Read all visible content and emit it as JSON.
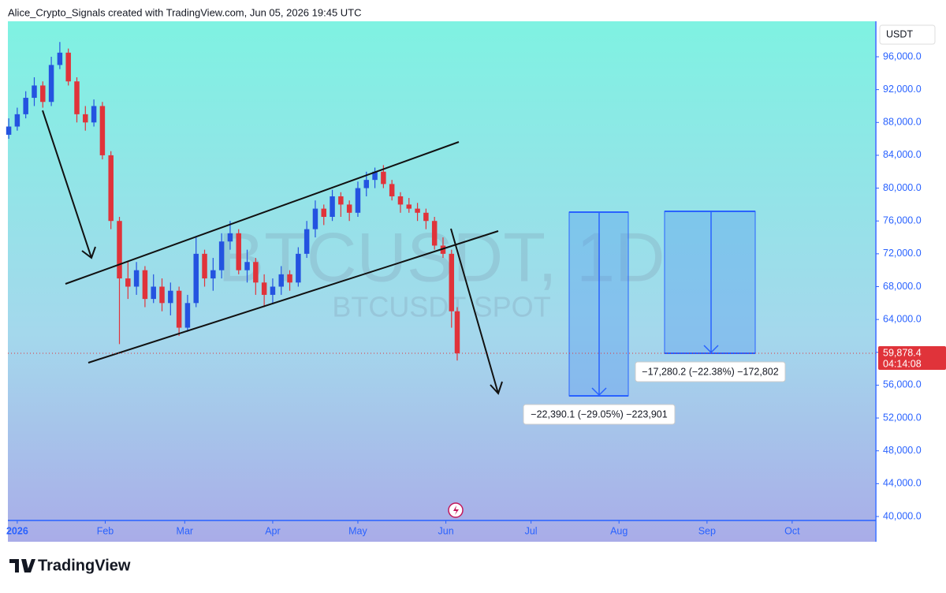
{
  "header": "Alice_Crypto_Signals created with TradingView.com, Jun 05, 2026 19:45 UTC",
  "chart_data": {
    "type": "candlestick",
    "currency": "USDT",
    "watermark": "BTCUSDT, 1D",
    "watermark_sub": "BTCUSDT SPOT",
    "up_color": "#2453e0",
    "down_color": "#e0333a",
    "x": [
      -3,
      0,
      3,
      6,
      9,
      12,
      15,
      18,
      21,
      24,
      27,
      30,
      33,
      36,
      39,
      42,
      45,
      48,
      51,
      54,
      57,
      60,
      63,
      66,
      69,
      72,
      75,
      78,
      81,
      84,
      87,
      90,
      93,
      96,
      99,
      102,
      105,
      108,
      111,
      114,
      117,
      120,
      123,
      126,
      129,
      132,
      135,
      138,
      141,
      144,
      147,
      150,
      153,
      155
    ],
    "open": [
      86500,
      87500,
      89000,
      91000,
      92500,
      90500,
      95000,
      96500,
      93000,
      89000,
      88000,
      90000,
      84000,
      76000,
      69000,
      68000,
      70000,
      66500,
      68000,
      66000,
      67500,
      63000,
      66000,
      72000,
      69000,
      70000,
      73500,
      74500,
      70000,
      71000,
      68500,
      67000,
      68000,
      69500,
      68500,
      72000,
      75000,
      77500,
      76500,
      79000,
      78000,
      77000,
      80000,
      81000,
      82000,
      80500,
      79000,
      78000,
      77500,
      77000,
      76000,
      73000,
      72000,
      65000
    ],
    "high": [
      88500,
      89800,
      91800,
      93500,
      93000,
      96000,
      97800,
      97000,
      93500,
      90000,
      90800,
      90500,
      84500,
      76500,
      71000,
      71000,
      70500,
      69500,
      69000,
      68500,
      68000,
      67000,
      74000,
      72500,
      71500,
      74500,
      76000,
      75000,
      72500,
      71500,
      69500,
      69000,
      70500,
      70000,
      72800,
      76000,
      78500,
      78000,
      79800,
      79500,
      78500,
      80800,
      82000,
      82500,
      82800,
      81000,
      79500,
      78800,
      78200,
      77500,
      76500,
      74000,
      72500,
      65500
    ],
    "low": [
      86000,
      87000,
      88500,
      90000,
      89800,
      90000,
      94500,
      92500,
      88000,
      87000,
      87500,
      83500,
      75000,
      61000,
      66500,
      67000,
      65500,
      66000,
      65000,
      64500,
      62000,
      62500,
      65500,
      68000,
      67500,
      69000,
      72500,
      69500,
      68500,
      67000,
      65500,
      66000,
      67000,
      67500,
      68000,
      71500,
      74000,
      75500,
      76000,
      76500,
      76000,
      76500,
      79000,
      80000,
      80000,
      78500,
      77000,
      77000,
      76000,
      75000,
      72500,
      71500,
      63000,
      59000
    ],
    "close": [
      87500,
      89000,
      91000,
      92500,
      90500,
      95000,
      96500,
      93000,
      89000,
      88000,
      90000,
      84000,
      76000,
      69000,
      68000,
      70000,
      66500,
      68000,
      66000,
      67500,
      63000,
      66000,
      72000,
      69000,
      70000,
      73500,
      74500,
      70000,
      71000,
      68500,
      67000,
      68000,
      69500,
      68500,
      72000,
      75000,
      77500,
      76500,
      79000,
      78000,
      77000,
      80000,
      81000,
      82000,
      80500,
      79000,
      78000,
      77500,
      77000,
      76000,
      73000,
      72000,
      65000,
      59878.4
    ],
    "last_price": 59878.4,
    "last_price_label": "59,878.4",
    "countdown": "04:14:08",
    "xlim": [
      -3.3,
      302.2
    ],
    "xticks": [
      {
        "value": 0,
        "label": "2026"
      },
      {
        "value": 31,
        "label": "Feb"
      },
      {
        "value": 59,
        "label": "Mar"
      },
      {
        "value": 90,
        "label": "Apr"
      },
      {
        "value": 120,
        "label": "May"
      },
      {
        "value": 151,
        "label": "Jun"
      },
      {
        "value": 181,
        "label": "Jul"
      },
      {
        "value": 212,
        "label": "Aug"
      },
      {
        "value": 243,
        "label": "Sep"
      },
      {
        "value": 273,
        "label": "Oct"
      }
    ],
    "ylim": [
      36926,
      100322
    ],
    "yticks": [
      {
        "value": 40000,
        "label": "40,000.0"
      },
      {
        "value": 44000,
        "label": "44,000.0"
      },
      {
        "value": 48000,
        "label": "48,000.0"
      },
      {
        "value": 52000,
        "label": "52,000.0"
      },
      {
        "value": 56000,
        "label": "56,000.0"
      },
      {
        "value": 60000,
        "label": "60,000.0"
      },
      {
        "value": 64000,
        "label": "64,000.0"
      },
      {
        "value": 68000,
        "label": "68,000.0"
      },
      {
        "value": 72000,
        "label": "72,000.0"
      },
      {
        "value": 76000,
        "label": "76,000.0"
      },
      {
        "value": 80000,
        "label": "80,000.0"
      },
      {
        "value": 84000,
        "label": "84,000.0"
      },
      {
        "value": 88000,
        "label": "88,000.0"
      },
      {
        "value": 92000,
        "label": "92,000.0"
      },
      {
        "value": 96000,
        "label": "96,000.0"
      }
    ],
    "measurements": [
      "−22,390.1 (−29.05%) −223,901",
      "−17,280.2 (−22.38%) −172,802"
    ]
  },
  "brand": "TradingView"
}
